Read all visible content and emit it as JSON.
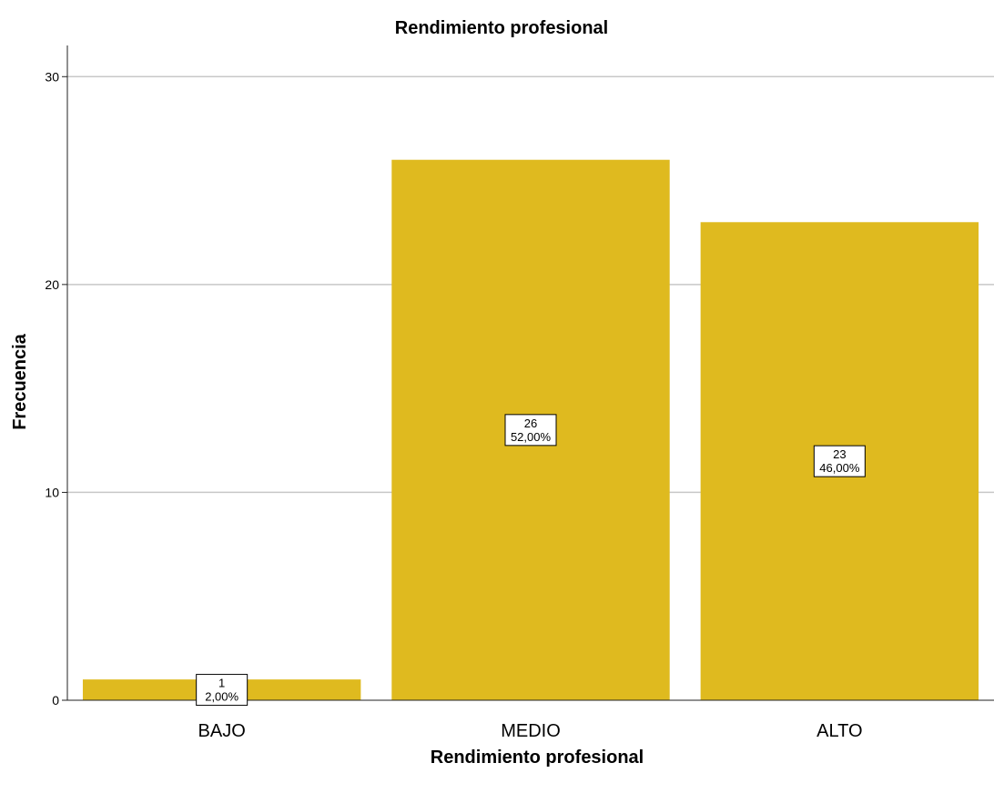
{
  "chart_data": {
    "type": "bar",
    "title": "Rendimiento profesional",
    "xlabel": "Rendimiento profesional",
    "ylabel": "Frecuencia",
    "categories": [
      "BAJO",
      "MEDIO",
      "ALTO"
    ],
    "values": [
      1,
      26,
      23
    ],
    "data_labels": [
      [
        "1",
        "2,00%"
      ],
      [
        "26",
        "52,00%"
      ],
      [
        "23",
        "46,00%"
      ]
    ],
    "ylim": [
      0,
      31.5
    ],
    "yticks": [
      0,
      10,
      20,
      30
    ],
    "grid": true,
    "bar_color": "#dfba1f"
  }
}
